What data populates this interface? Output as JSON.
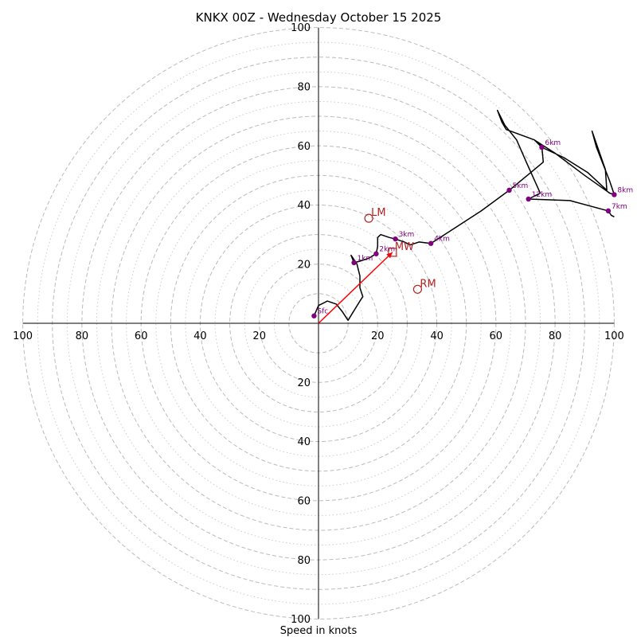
{
  "chart_data": {
    "type": "hodograph",
    "title": "KNKX 00Z - Wednesday October 15 2025",
    "xlabel": "Speed in knots",
    "units": "knots",
    "xlim": [
      -100,
      100
    ],
    "ylim": [
      -100,
      100
    ],
    "axis_ticks": {
      "right": [
        "20",
        "40",
        "60",
        "80",
        "100"
      ],
      "left": [
        "100",
        "80",
        "60",
        "40",
        "20"
      ],
      "up": [
        "20",
        "40",
        "60",
        "80",
        "100"
      ],
      "down": [
        "20",
        "40",
        "60",
        "80",
        "100"
      ]
    },
    "rings_major": [
      10,
      20,
      30,
      40,
      50,
      60,
      70,
      80,
      90,
      100
    ],
    "rings_minor": [
      15,
      25,
      35,
      45,
      55,
      65,
      75,
      85,
      95
    ],
    "colors": {
      "trace": "#000000",
      "heights": "#800080",
      "motion": "#b22222",
      "shear": "#ff0000",
      "grid": "#bbbbbb"
    },
    "trace": [
      [
        -1.5,
        2.5
      ],
      [
        0,
        6
      ],
      [
        2,
        7
      ],
      [
        3,
        7.5
      ],
      [
        6,
        6.5
      ],
      [
        8,
        4
      ],
      [
        10,
        1
      ],
      [
        14,
        7.5
      ],
      [
        15,
        9
      ],
      [
        14,
        12
      ],
      [
        14,
        16
      ],
      [
        13,
        20
      ],
      [
        11,
        23
      ],
      [
        12,
        20.5
      ],
      [
        14,
        21
      ],
      [
        17,
        22
      ],
      [
        19.5,
        23.5
      ],
      [
        20,
        26
      ],
      [
        20,
        29
      ],
      [
        21,
        30
      ],
      [
        24,
        29
      ],
      [
        26,
        28.5
      ],
      [
        29,
        27.5
      ],
      [
        31,
        26.5
      ],
      [
        34,
        27.5
      ],
      [
        38,
        27
      ],
      [
        45,
        31.5
      ],
      [
        55,
        38
      ],
      [
        64.5,
        45
      ],
      [
        73,
        52
      ],
      [
        76,
        54.5
      ],
      [
        75.5,
        60
      ],
      [
        73,
        62
      ],
      [
        80,
        57.5
      ],
      [
        90,
        50
      ],
      [
        98.5,
        44
      ],
      [
        100,
        43.5
      ],
      [
        98.5,
        48
      ],
      [
        94,
        59.5
      ],
      [
        92.5,
        65
      ],
      [
        97,
        52
      ],
      [
        97.5,
        45
      ],
      [
        91,
        51
      ],
      [
        83,
        56
      ],
      [
        75.5,
        59.5
      ],
      [
        73,
        62
      ],
      [
        63.5,
        65.5
      ],
      [
        62,
        68
      ],
      [
        60.5,
        72
      ],
      [
        63,
        67
      ],
      [
        67,
        62
      ],
      [
        70.5,
        54
      ],
      [
        75,
        44
      ],
      [
        71,
        42
      ],
      [
        85,
        41.5
      ],
      [
        98,
        38
      ],
      [
        99,
        36.5
      ],
      [
        100,
        36
      ]
    ],
    "heights": [
      {
        "label": "Sfc",
        "u": -1.5,
        "v": 2.5
      },
      {
        "label": "1km",
        "u": 12,
        "v": 20.5
      },
      {
        "label": "2km",
        "u": 19.5,
        "v": 23.5
      },
      {
        "label": "3km",
        "u": 26,
        "v": 28.5
      },
      {
        "label": "4km",
        "u": 38,
        "v": 27
      },
      {
        "label": "5km",
        "u": 64.5,
        "v": 45
      },
      {
        "label": "6km",
        "u": 75.5,
        "v": 59.5
      },
      {
        "label": "7km",
        "u": 98,
        "v": 38
      },
      {
        "label": "8km",
        "u": 100,
        "v": 43.5
      },
      {
        "label": "12km",
        "u": 71,
        "v": 42
      }
    ],
    "storm_motion": [
      {
        "label": "LM",
        "u": 17,
        "v": 35.5,
        "marker": "circle"
      },
      {
        "label": "MW",
        "u": 25,
        "v": 24,
        "marker": "square"
      },
      {
        "label": "RM",
        "u": 33.5,
        "v": 11.5,
        "marker": "circle"
      }
    ],
    "shear_vector": {
      "from": [
        0,
        0
      ],
      "to": [
        25,
        24
      ]
    }
  }
}
